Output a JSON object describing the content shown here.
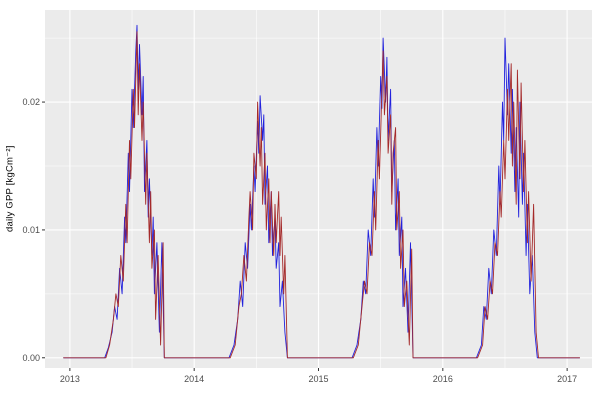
{
  "figure": {
    "background": "#FFFFFF",
    "panel_bg": "#EBEBEB",
    "grid_major_color": "#FFFFFF",
    "grid_minor_color": "#FFFFFF",
    "tick_mark_color": "#333333",
    "tick_label_color": "#4D4D4D",
    "axis_title_color": "#000000"
  },
  "chart_data": {
    "type": "line",
    "title": "",
    "xlabel": "",
    "ylabel": "daily GPP [kgCm⁻²]",
    "legend": "none",
    "grid": true,
    "xlim": [
      2012.8,
      2017.2
    ],
    "ylim": [
      -0.0008,
      0.0272
    ],
    "x_ticks": {
      "major": [
        2013,
        2014,
        2015,
        2016,
        2017
      ],
      "minor": [
        2013.5,
        2014.5,
        2015.5,
        2016.5
      ],
      "labels": [
        "2013",
        "2014",
        "2015",
        "2016",
        "2017"
      ]
    },
    "y_ticks": {
      "major": [
        0,
        0.01,
        0.02
      ],
      "minor": [
        0.005,
        0.015,
        0.025
      ],
      "labels": [
        "0.00",
        "0.01",
        "0.02"
      ]
    },
    "series": [
      {
        "name": "modelled-gpp-blue",
        "color": "#2222DD",
        "width": 0.9,
        "points": [
          [
            2012.95,
            0
          ],
          [
            2013.28,
            0
          ],
          [
            2013.31,
            0.0008
          ],
          [
            2013.34,
            0.002
          ],
          [
            2013.36,
            0.004
          ],
          [
            2013.38,
            0.003
          ],
          [
            2013.4,
            0.007
          ],
          [
            2013.42,
            0.005
          ],
          [
            2013.44,
            0.011
          ],
          [
            2013.45,
            0.009
          ],
          [
            2013.47,
            0.016
          ],
          [
            2013.48,
            0.013
          ],
          [
            2013.5,
            0.021
          ],
          [
            2013.51,
            0.018
          ],
          [
            2013.53,
            0.024
          ],
          [
            2013.54,
            0.026
          ],
          [
            2013.55,
            0.021
          ],
          [
            2013.56,
            0.0245
          ],
          [
            2013.58,
            0.019
          ],
          [
            2013.59,
            0.022
          ],
          [
            2013.6,
            0.013
          ],
          [
            2013.62,
            0.017
          ],
          [
            2013.63,
            0.011
          ],
          [
            2013.64,
            0.014
          ],
          [
            2013.66,
            0.008
          ],
          [
            2013.67,
            0.011
          ],
          [
            2013.68,
            0.005
          ],
          [
            2013.7,
            0.009
          ],
          [
            2013.72,
            0.002
          ],
          [
            2013.74,
            0.009
          ],
          [
            2013.76,
            0
          ],
          [
            2014.28,
            0
          ],
          [
            2014.32,
            0.001
          ],
          [
            2014.35,
            0.003
          ],
          [
            2014.37,
            0.006
          ],
          [
            2014.39,
            0.004
          ],
          [
            2014.41,
            0.009
          ],
          [
            2014.43,
            0.007
          ],
          [
            2014.45,
            0.012
          ],
          [
            2014.46,
            0.01
          ],
          [
            2014.48,
            0.015
          ],
          [
            2014.49,
            0.013
          ],
          [
            2014.51,
            0.0185
          ],
          [
            2014.52,
            0.016
          ],
          [
            2014.53,
            0.0205
          ],
          [
            2014.55,
            0.017
          ],
          [
            2014.56,
            0.019
          ],
          [
            2014.57,
            0.012
          ],
          [
            2014.59,
            0.015
          ],
          [
            2014.6,
            0.009
          ],
          [
            2014.62,
            0.013
          ],
          [
            2014.63,
            0.008
          ],
          [
            2014.65,
            0.011
          ],
          [
            2014.66,
            0.007
          ],
          [
            2014.68,
            0.009
          ],
          [
            2014.69,
            0.004
          ],
          [
            2014.71,
            0.006
          ],
          [
            2014.73,
            0.002
          ],
          [
            2014.75,
            0
          ],
          [
            2015.27,
            0
          ],
          [
            2015.31,
            0.001
          ],
          [
            2015.34,
            0.003
          ],
          [
            2015.36,
            0.006
          ],
          [
            2015.38,
            0.005
          ],
          [
            2015.4,
            0.01
          ],
          [
            2015.42,
            0.008
          ],
          [
            2015.44,
            0.014
          ],
          [
            2015.45,
            0.011
          ],
          [
            2015.47,
            0.018
          ],
          [
            2015.48,
            0.015
          ],
          [
            2015.5,
            0.022
          ],
          [
            2015.51,
            0.0195
          ],
          [
            2015.52,
            0.025
          ],
          [
            2015.54,
            0.02
          ],
          [
            2015.55,
            0.0235
          ],
          [
            2015.56,
            0.017
          ],
          [
            2015.58,
            0.021
          ],
          [
            2015.59,
            0.013
          ],
          [
            2015.61,
            0.017
          ],
          [
            2015.62,
            0.01
          ],
          [
            2015.64,
            0.014
          ],
          [
            2015.65,
            0.008
          ],
          [
            2015.67,
            0.011
          ],
          [
            2015.68,
            0.004
          ],
          [
            2015.7,
            0.007
          ],
          [
            2015.72,
            0.002
          ],
          [
            2015.74,
            0.009
          ],
          [
            2015.76,
            0
          ],
          [
            2016.27,
            0
          ],
          [
            2016.31,
            0.001
          ],
          [
            2016.33,
            0.004
          ],
          [
            2016.35,
            0.003
          ],
          [
            2016.37,
            0.007
          ],
          [
            2016.39,
            0.005
          ],
          [
            2016.41,
            0.01
          ],
          [
            2016.43,
            0.008
          ],
          [
            2016.45,
            0.015
          ],
          [
            2016.46,
            0.012
          ],
          [
            2016.48,
            0.02
          ],
          [
            2016.49,
            0.017
          ],
          [
            2016.5,
            0.025
          ],
          [
            2016.52,
            0.019
          ],
          [
            2016.53,
            0.023
          ],
          [
            2016.55,
            0.016
          ],
          [
            2016.56,
            0.021
          ],
          [
            2016.58,
            0.013
          ],
          [
            2016.59,
            0.018
          ],
          [
            2016.61,
            0.011
          ],
          [
            2016.62,
            0.02
          ],
          [
            2016.64,
            0.012
          ],
          [
            2016.65,
            0.016
          ],
          [
            2016.67,
            0.008
          ],
          [
            2016.68,
            0.012
          ],
          [
            2016.7,
            0.005
          ],
          [
            2016.72,
            0.008
          ],
          [
            2016.74,
            0.002
          ],
          [
            2016.76,
            0
          ],
          [
            2017.1,
            0
          ]
        ]
      },
      {
        "name": "observed-gpp-darkred",
        "color": "#A52A2A",
        "width": 0.9,
        "points": [
          [
            2012.95,
            0
          ],
          [
            2013.29,
            0
          ],
          [
            2013.32,
            0.001
          ],
          [
            2013.35,
            0.003
          ],
          [
            2013.37,
            0.005
          ],
          [
            2013.39,
            0.004
          ],
          [
            2013.41,
            0.008
          ],
          [
            2013.43,
            0.006
          ],
          [
            2013.45,
            0.012
          ],
          [
            2013.46,
            0.009
          ],
          [
            2013.48,
            0.017
          ],
          [
            2013.49,
            0.014
          ],
          [
            2013.51,
            0.021
          ],
          [
            2013.52,
            0.018
          ],
          [
            2013.54,
            0.0255
          ],
          [
            2013.55,
            0.019
          ],
          [
            2013.56,
            0.023
          ],
          [
            2013.58,
            0.017
          ],
          [
            2013.59,
            0.02
          ],
          [
            2013.61,
            0.012
          ],
          [
            2013.62,
            0.016
          ],
          [
            2013.64,
            0.009
          ],
          [
            2013.65,
            0.013
          ],
          [
            2013.66,
            0.007
          ],
          [
            2013.68,
            0.01
          ],
          [
            2013.69,
            0.003
          ],
          [
            2013.71,
            0.008
          ],
          [
            2013.73,
            0.001
          ],
          [
            2013.75,
            0.009
          ],
          [
            2013.76,
            0
          ],
          [
            2014.29,
            0
          ],
          [
            2014.33,
            0.001
          ],
          [
            2014.36,
            0.004
          ],
          [
            2014.38,
            0.005
          ],
          [
            2014.4,
            0.008
          ],
          [
            2014.42,
            0.006
          ],
          [
            2014.44,
            0.011
          ],
          [
            2014.45,
            0.013
          ],
          [
            2014.47,
            0.01
          ],
          [
            2014.48,
            0.016
          ],
          [
            2014.5,
            0.014
          ],
          [
            2014.51,
            0.02
          ],
          [
            2014.53,
            0.015
          ],
          [
            2014.54,
            0.018
          ],
          [
            2014.55,
            0.012
          ],
          [
            2014.57,
            0.016
          ],
          [
            2014.58,
            0.01
          ],
          [
            2014.6,
            0.014
          ],
          [
            2014.61,
            0.009
          ],
          [
            2014.62,
            0.013
          ],
          [
            2014.64,
            0.008
          ],
          [
            2014.65,
            0.012
          ],
          [
            2014.66,
            0.009
          ],
          [
            2014.68,
            0.013
          ],
          [
            2014.69,
            0.008
          ],
          [
            2014.7,
            0.011
          ],
          [
            2014.72,
            0.005
          ],
          [
            2014.73,
            0.008
          ],
          [
            2014.75,
            0
          ],
          [
            2015.28,
            0
          ],
          [
            2015.32,
            0.001
          ],
          [
            2015.35,
            0.004
          ],
          [
            2015.37,
            0.006
          ],
          [
            2015.39,
            0.005
          ],
          [
            2015.41,
            0.009
          ],
          [
            2015.43,
            0.008
          ],
          [
            2015.45,
            0.013
          ],
          [
            2015.46,
            0.01
          ],
          [
            2015.48,
            0.017
          ],
          [
            2015.49,
            0.014
          ],
          [
            2015.51,
            0.021
          ],
          [
            2015.52,
            0.024
          ],
          [
            2015.53,
            0.019
          ],
          [
            2015.55,
            0.022
          ],
          [
            2015.56,
            0.016
          ],
          [
            2015.58,
            0.019
          ],
          [
            2015.59,
            0.012
          ],
          [
            2015.6,
            0.016
          ],
          [
            2015.62,
            0.018
          ],
          [
            2015.63,
            0.01
          ],
          [
            2015.65,
            0.013
          ],
          [
            2015.66,
            0.007
          ],
          [
            2015.68,
            0.01
          ],
          [
            2015.69,
            0.004
          ],
          [
            2015.71,
            0.006
          ],
          [
            2015.73,
            0.001
          ],
          [
            2015.75,
            0.0085
          ],
          [
            2015.76,
            0
          ],
          [
            2016.28,
            0
          ],
          [
            2016.32,
            0.001
          ],
          [
            2016.34,
            0.004
          ],
          [
            2016.36,
            0.003
          ],
          [
            2016.38,
            0.006
          ],
          [
            2016.4,
            0.005
          ],
          [
            2016.42,
            0.009
          ],
          [
            2016.44,
            0.008
          ],
          [
            2016.46,
            0.013
          ],
          [
            2016.47,
            0.011
          ],
          [
            2016.49,
            0.017
          ],
          [
            2016.5,
            0.014
          ],
          [
            2016.52,
            0.021
          ],
          [
            2016.53,
            0.017
          ],
          [
            2016.55,
            0.023
          ],
          [
            2016.56,
            0.015
          ],
          [
            2016.57,
            0.02
          ],
          [
            2016.59,
            0.012
          ],
          [
            2016.6,
            0.0225
          ],
          [
            2016.62,
            0.014
          ],
          [
            2016.63,
            0.0215
          ],
          [
            2016.65,
            0.013
          ],
          [
            2016.66,
            0.017
          ],
          [
            2016.68,
            0.009
          ],
          [
            2016.69,
            0.013
          ],
          [
            2016.71,
            0.006
          ],
          [
            2016.73,
            0.012
          ],
          [
            2016.75,
            0.002
          ],
          [
            2016.77,
            0
          ],
          [
            2017.1,
            0
          ]
        ]
      }
    ]
  }
}
